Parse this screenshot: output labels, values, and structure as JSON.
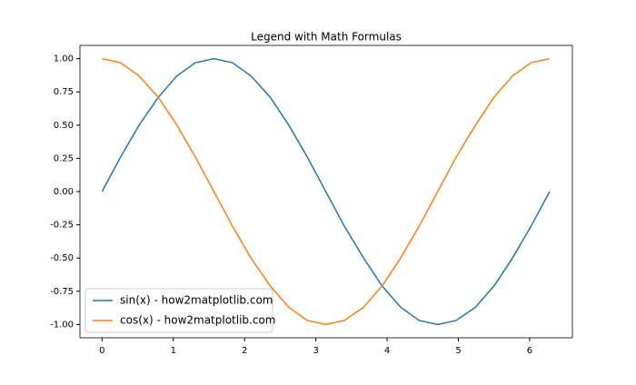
{
  "chart_data": {
    "type": "line",
    "title": "Legend with Math Formulas",
    "x": [
      0,
      0.26,
      0.52,
      0.79,
      1.05,
      1.31,
      1.57,
      1.83,
      2.09,
      2.36,
      2.62,
      2.88,
      3.14,
      3.4,
      3.67,
      3.93,
      4.19,
      4.45,
      4.71,
      4.97,
      5.24,
      5.5,
      5.76,
      6.02,
      6.28
    ],
    "series": [
      {
        "name": "sin(x) - how2matplotlib.com",
        "color": "#1f77b4",
        "values": [
          0,
          0.26,
          0.5,
          0.71,
          0.87,
          0.97,
          1,
          0.97,
          0.87,
          0.71,
          0.5,
          0.26,
          0,
          -0.26,
          -0.5,
          -0.71,
          -0.87,
          -0.97,
          -1,
          -0.97,
          -0.87,
          -0.71,
          -0.5,
          -0.26,
          0
        ]
      },
      {
        "name": "cos(x) - how2matplotlib.com",
        "color": "#ff7f0e",
        "values": [
          1,
          0.97,
          0.87,
          0.71,
          0.5,
          0.26,
          0,
          -0.26,
          -0.5,
          -0.71,
          -0.87,
          -0.97,
          -1,
          -0.97,
          -0.87,
          -0.71,
          -0.5,
          -0.26,
          0,
          0.26,
          0.5,
          0.71,
          0.87,
          0.97,
          1
        ]
      }
    ],
    "xlim": [
      -0.31,
      6.6
    ],
    "ylim": [
      -1.1,
      1.1
    ],
    "xticks": [
      0,
      1,
      2,
      3,
      4,
      5,
      6
    ],
    "yticks": [
      {
        "value": 1,
        "label": "1.00"
      },
      0.75,
      {
        "value": 0.5,
        "label": "0.50"
      },
      0.25,
      {
        "value": 0,
        "label": "0.00"
      },
      -0.25,
      {
        "value": -0.5,
        "label": "-0.50"
      },
      -0.75,
      {
        "value": -1,
        "label": "-1.00"
      }
    ],
    "legend": "lower left",
    "grid": false
  }
}
